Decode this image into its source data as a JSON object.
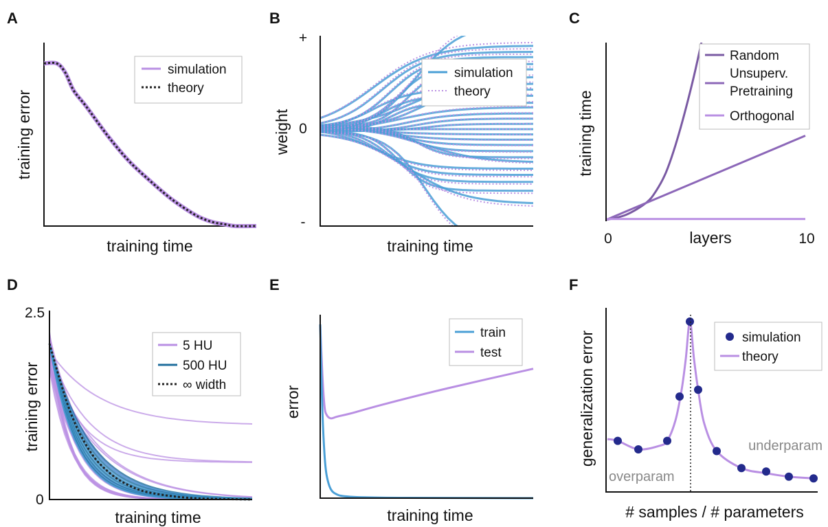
{
  "colors": {
    "purple": "#b98fe3",
    "purple_dark": "#7a5aa3",
    "purple_mid": "#8c67b8",
    "blue": "#4a9fd6",
    "blue_dark": "#1f6e9c",
    "navy": "#232a8c",
    "black": "#222222"
  },
  "chart_data": [
    {
      "panel": "A",
      "type": "line",
      "xlabel": "training time",
      "ylabel": "training error",
      "legend": [
        "simulation",
        "theory"
      ],
      "legend_position": "top-right",
      "series": [
        {
          "name": "simulation",
          "style": "solid",
          "color": "purple",
          "x": [
            0,
            0.06,
            0.1,
            0.14,
            0.2,
            0.3,
            0.4,
            0.5,
            0.6,
            0.7,
            0.75,
            0.8,
            0.85,
            0.9,
            1.0
          ],
          "values": [
            0.9,
            0.9,
            0.85,
            0.75,
            0.66,
            0.5,
            0.36,
            0.25,
            0.15,
            0.07,
            0.04,
            0.02,
            0.01,
            0.0,
            0.0
          ]
        },
        {
          "name": "theory",
          "style": "dotted",
          "color": "black",
          "x": [
            0,
            0.06,
            0.1,
            0.14,
            0.2,
            0.3,
            0.4,
            0.5,
            0.6,
            0.7,
            0.75,
            0.8,
            0.85,
            0.9,
            1.0
          ],
          "values": [
            0.9,
            0.9,
            0.85,
            0.75,
            0.66,
            0.5,
            0.36,
            0.25,
            0.15,
            0.07,
            0.04,
            0.02,
            0.01,
            0.0,
            0.0
          ]
        }
      ]
    },
    {
      "panel": "B",
      "type": "line",
      "xlabel": "training time",
      "ylabel": "weight",
      "yticklabels": [
        "+",
        "0",
        "-"
      ],
      "legend": [
        "simulation",
        "theory"
      ],
      "legend_position": "top-right",
      "description_series": "many weight trajectories diverging from 0 over time; simulation solid, theory dotted",
      "final_weights": [
        0.95,
        0.88,
        0.82,
        0.74,
        0.68,
        0.6,
        0.52,
        0.45,
        0.38,
        0.3,
        0.25,
        0.18,
        0.12,
        0.06,
        0.0,
        -0.06,
        -0.12,
        -0.18,
        -0.25,
        -0.32,
        -0.38,
        -0.45,
        -0.52,
        -0.6,
        -0.7,
        -0.85,
        1.2,
        -1.3
      ]
    },
    {
      "panel": "C",
      "type": "line",
      "xlabel": "layers",
      "ylabel": "training time",
      "xticklabels": [
        "0",
        "10"
      ],
      "xlim": [
        0,
        10
      ],
      "legend": [
        "Random",
        "Unsuperv.\nPretraining",
        "Orthogonal"
      ],
      "legend_position": "top-right",
      "series": [
        {
          "name": "Random",
          "color": "purple_dark",
          "x": [
            0,
            1,
            2,
            2.5,
            3,
            3.5,
            4,
            4.5,
            5,
            5.3
          ],
          "values": [
            0,
            0.03,
            0.1,
            0.17,
            0.28,
            0.45,
            0.66,
            0.9,
            1.18,
            1.4
          ]
        },
        {
          "name": "Unsuperv.\nPretraining",
          "color": "purple_mid",
          "x": [
            0,
            10
          ],
          "values": [
            0,
            0.5
          ]
        },
        {
          "name": "Orthogonal",
          "color": "purple",
          "x": [
            0,
            10
          ],
          "values": [
            0.005,
            0.005
          ]
        }
      ]
    },
    {
      "panel": "D",
      "type": "line",
      "xlabel": "training time",
      "ylabel": "training error",
      "yticklabels": [
        "2.5",
        "0"
      ],
      "ylim": [
        0,
        2.5
      ],
      "legend": [
        "5 HU",
        "500 HU",
        "∞ width"
      ],
      "legend_position": "top-right",
      "plateaus_5HU": [
        1.0,
        0.5,
        0.5,
        0.0,
        0.0,
        0.0,
        0.0,
        0.0,
        0.0,
        0.0,
        0.0,
        0.0,
        0.0,
        0.0,
        0.0,
        0.0,
        0.0,
        0.0
      ],
      "infinite_width": {
        "x": [
          0,
          0.1,
          0.2,
          0.3,
          0.4,
          0.5,
          0.7,
          1.0
        ],
        "values": [
          2.1,
          1.2,
          0.65,
          0.35,
          0.18,
          0.09,
          0.02,
          0.0
        ]
      }
    },
    {
      "panel": "E",
      "type": "line",
      "xlabel": "training time",
      "ylabel": "error",
      "legend": [
        "train",
        "test"
      ],
      "legend_position": "top-right",
      "series": [
        {
          "name": "train",
          "color": "blue",
          "x": [
            0,
            0.01,
            0.02,
            0.03,
            0.05,
            0.08,
            0.12,
            0.2,
            0.4,
            1.0
          ],
          "values": [
            0.98,
            0.5,
            0.25,
            0.13,
            0.05,
            0.02,
            0.01,
            0.005,
            0.002,
            0.0
          ]
        },
        {
          "name": "test",
          "color": "purple",
          "x": [
            0,
            0.01,
            0.02,
            0.03,
            0.05,
            0.08,
            0.15,
            0.3,
            0.6,
            1.0
          ],
          "values": [
            0.98,
            0.7,
            0.52,
            0.47,
            0.45,
            0.46,
            0.48,
            0.53,
            0.62,
            0.73
          ]
        }
      ]
    },
    {
      "panel": "F",
      "type": "line",
      "xlabel": "# samples / # parameters",
      "ylabel": "generalization error",
      "legend": [
        "simulation",
        "theory"
      ],
      "legend_position": "top-right",
      "annotations": [
        "overparam",
        "underparam"
      ],
      "interpolation_threshold_x": 0.4,
      "series": [
        {
          "name": "simulation",
          "style": "markers",
          "color": "navy",
          "x": [
            0.05,
            0.15,
            0.29,
            0.35,
            0.4,
            0.44,
            0.53,
            0.65,
            0.77,
            0.88,
            1.0
          ],
          "values": [
            0.3,
            0.25,
            0.3,
            0.56,
            1.0,
            0.6,
            0.24,
            0.14,
            0.12,
            0.09,
            0.08
          ]
        },
        {
          "name": "theory",
          "style": "solid",
          "color": "purple",
          "x": [
            0.0,
            0.05,
            0.15,
            0.25,
            0.29,
            0.33,
            0.36,
            0.38,
            0.4,
            0.42,
            0.44,
            0.47,
            0.53,
            0.65,
            0.77,
            0.88,
            1.0
          ],
          "values": [
            0.31,
            0.3,
            0.25,
            0.27,
            0.3,
            0.42,
            0.6,
            0.78,
            1.0,
            0.78,
            0.6,
            0.4,
            0.24,
            0.14,
            0.11,
            0.09,
            0.08
          ]
        }
      ]
    }
  ],
  "panel_letters": [
    "A",
    "B",
    "C",
    "D",
    "E",
    "F"
  ],
  "text": {
    "a_xlabel": "training time",
    "a_ylabel": "training error",
    "a_leg1": "simulation",
    "a_leg2": "theory",
    "b_xlabel": "training time",
    "b_ylabel": "weight",
    "b_plus": "+",
    "b_zero": "0",
    "b_minus": "-",
    "b_leg1": "simulation",
    "b_leg2": "theory",
    "c_xlabel": "layers",
    "c_ylabel": "training time",
    "c_tick0": "0",
    "c_tick10": "10",
    "c_leg1": "Random",
    "c_leg2a": "Unsuperv.",
    "c_leg2b": "Pretraining",
    "c_leg3": "Orthogonal",
    "d_xlabel": "training time",
    "d_ylabel": "training error",
    "d_tick_top": "2.5",
    "d_tick_bottom": "0",
    "d_leg1": "5 HU",
    "d_leg2": "500 HU",
    "d_leg3": "∞ width",
    "e_xlabel": "training time",
    "e_ylabel": "error",
    "e_leg1": "train",
    "e_leg2": "test",
    "f_xlabel": "# samples / # parameters",
    "f_ylabel": "generalization error",
    "f_leg1": "simulation",
    "f_leg2": "theory",
    "f_over": "overparam",
    "f_under": "underparam"
  }
}
